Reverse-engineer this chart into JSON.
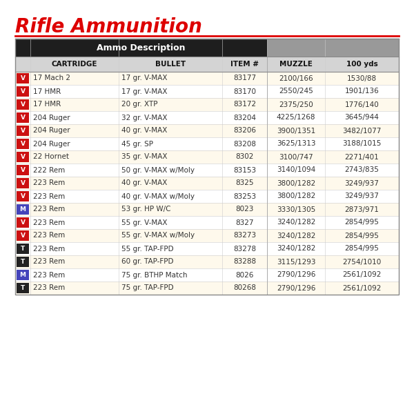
{
  "title": "Rifle Ammunition",
  "header_left": "Ammo Description",
  "rows": [
    {
      "badge": "V",
      "badge_color": "#cc1111",
      "cartridge": "17 Mach 2",
      "bullet": "17 gr. V-MAX",
      "item": "83177",
      "muzzle": "2100/166",
      "yds100": "1530/88"
    },
    {
      "badge": "V",
      "badge_color": "#cc1111",
      "cartridge": "17 HMR",
      "bullet": "17 gr. V-MAX",
      "item": "83170",
      "muzzle": "2550/245",
      "yds100": "1901/136"
    },
    {
      "badge": "V",
      "badge_color": "#cc1111",
      "cartridge": "17 HMR",
      "bullet": "20 gr. XTP",
      "item": "83172",
      "muzzle": "2375/250",
      "yds100": "1776/140"
    },
    {
      "badge": "V",
      "badge_color": "#cc1111",
      "cartridge": "204 Ruger",
      "bullet": "32 gr. V-MAX",
      "item": "83204",
      "muzzle": "4225/1268",
      "yds100": "3645/944"
    },
    {
      "badge": "V",
      "badge_color": "#cc1111",
      "cartridge": "204 Ruger",
      "bullet": "40 gr. V-MAX",
      "item": "83206",
      "muzzle": "3900/1351",
      "yds100": "3482/1077"
    },
    {
      "badge": "V",
      "badge_color": "#cc1111",
      "cartridge": "204 Ruger",
      "bullet": "45 gr. SP",
      "item": "83208",
      "muzzle": "3625/1313",
      "yds100": "3188/1015"
    },
    {
      "badge": "V",
      "badge_color": "#cc1111",
      "cartridge": "22 Hornet",
      "bullet": "35 gr. V-MAX",
      "item": "8302",
      "muzzle": "3100/747",
      "yds100": "2271/401"
    },
    {
      "badge": "V",
      "badge_color": "#cc1111",
      "cartridge": "222 Rem",
      "bullet": "50 gr. V-MAX w/Moly",
      "item": "83153",
      "muzzle": "3140/1094",
      "yds100": "2743/835"
    },
    {
      "badge": "V",
      "badge_color": "#cc1111",
      "cartridge": "223 Rem",
      "bullet": "40 gr. V-MAX",
      "item": "8325",
      "muzzle": "3800/1282",
      "yds100": "3249/937"
    },
    {
      "badge": "V",
      "badge_color": "#cc1111",
      "cartridge": "223 Rem",
      "bullet": "40 gr. V-MAX w/Moly",
      "item": "83253",
      "muzzle": "3800/1282",
      "yds100": "3249/937"
    },
    {
      "badge": "M",
      "badge_color": "#4444bb",
      "cartridge": "223 Rem",
      "bullet": "53 gr. HP W/C",
      "item": "8023",
      "muzzle": "3330/1305",
      "yds100": "2873/971"
    },
    {
      "badge": "V",
      "badge_color": "#cc1111",
      "cartridge": "223 Rem",
      "bullet": "55 gr. V-MAX",
      "item": "8327",
      "muzzle": "3240/1282",
      "yds100": "2854/995"
    },
    {
      "badge": "V",
      "badge_color": "#cc1111",
      "cartridge": "223 Rem",
      "bullet": "55 gr. V-MAX w/Moly",
      "item": "83273",
      "muzzle": "3240/1282",
      "yds100": "2854/995"
    },
    {
      "badge": "T",
      "badge_color": "#222222",
      "cartridge": "223 Rem",
      "bullet": "55 gr. TAP-FPD",
      "item": "83278",
      "muzzle": "3240/1282",
      "yds100": "2854/995"
    },
    {
      "badge": "T",
      "badge_color": "#222222",
      "cartridge": "223 Rem",
      "bullet": "60 gr. TAP-FPD",
      "item": "83288",
      "muzzle": "3115/1293",
      "yds100": "2754/1010"
    },
    {
      "badge": "M",
      "badge_color": "#4444bb",
      "cartridge": "223 Rem",
      "bullet": "75 gr. BTHP Match",
      "item": "8026",
      "muzzle": "2790/1296",
      "yds100": "2561/1092"
    },
    {
      "badge": "T",
      "badge_color": "#222222",
      "cartridge": "223 Rem",
      "bullet": "75 gr. TAP-FPD",
      "item": "80268",
      "muzzle": "2790/1296",
      "yds100": "2561/1092"
    }
  ],
  "title_color": "#dd0000",
  "underline_color": "#dd0000",
  "header_bg": "#1e1e1e",
  "header_text_color": "#ffffff",
  "col_header_bg": "#d4d4d4",
  "col_header_text": "#111111",
  "gray_header_bg": "#999999",
  "row_bg_cream": "#fef9ec",
  "row_bg_white": "#ffffff",
  "border_color": "#888888",
  "line_color": "#cccccc",
  "badge_text_color": "#ffffff",
  "data_text_color": "#333333"
}
